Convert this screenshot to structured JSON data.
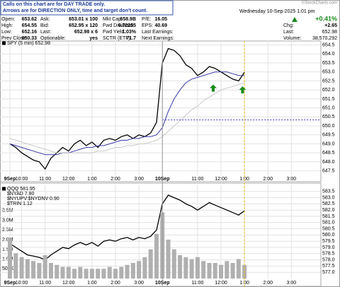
{
  "header": {
    "notice": [
      "Calls on this chart are for DAY TRADE only.",
      "Arrows are for DIRECTION ONLY, time and target don't count."
    ],
    "quote_columns": [
      [
        {
          "label": "Open:",
          "value": 653.62
        },
        {
          "label": "High:",
          "value": 654.55
        },
        {
          "label": "Low:",
          "value": 652.16
        },
        {
          "label": "Prev Close:",
          "value": 650.33
        }
      ],
      [
        {
          "label": "Ask:",
          "value": "653.01 x 100"
        },
        {
          "label": "Bid:",
          "value": "652.95 x 120"
        },
        {
          "label": "Last:",
          "value": "652.98 x 6"
        },
        {
          "label": "Optionable:",
          "value": "yes"
        }
      ],
      [
        {
          "label": "Mkt Cap:",
          "value": "658.9B"
        },
        {
          "label": "Fwd Dividend:",
          "value": 6.72255
        },
        {
          "label": "Fwd Yield:",
          "value": "1.03%"
        },
        {
          "label": "SCTR (ETF):",
          "value": 71.7
        }
      ],
      [
        {
          "label": "P/E:",
          "value": 16.05
        },
        {
          "label": "EPS:",
          "value": 40.69
        },
        {
          "label": "Last Earnings:"
        },
        {
          "label": "Next Earnings:"
        }
      ]
    ],
    "source": "©StockCharts.com",
    "date": "Wednesday 10-Sep-2025 1:01 pm",
    "change_pct": "+0.41%",
    "chg_label": "Chg:",
    "chg": "+2.65",
    "last_label": "Last:",
    "last": 652.98,
    "volume_label": "Volume:",
    "volume": "38,570,292"
  },
  "chart_data": [
    {
      "type": "line",
      "x": [
        0,
        3,
        6,
        9,
        12,
        15,
        18,
        21,
        24,
        27,
        30,
        33,
        36,
        39,
        42,
        45,
        48,
        51,
        54,
        57,
        60,
        63,
        66,
        69,
        72,
        75,
        78,
        81,
        84,
        87,
        90,
        93,
        96,
        99,
        102,
        105,
        108,
        111,
        114,
        117,
        120
      ],
      "xlim": [
        0,
        158
      ],
      "xticks": [
        {
          "value": 0,
          "label": "9Sep"
        },
        {
          "value": 6,
          "label": "10:00"
        },
        {
          "value": 18,
          "label": "11:00"
        },
        {
          "value": 30,
          "label": "12:00"
        },
        {
          "value": 42,
          "label": "1:00"
        },
        {
          "value": 54,
          "label": "2:00"
        },
        {
          "value": 66,
          "label": "3:00"
        },
        {
          "value": 78,
          "label": "10Sep"
        },
        {
          "value": 96,
          "label": "11:00"
        },
        {
          "value": 108,
          "label": "12:00"
        },
        {
          "value": 120,
          "label": "1:00"
        },
        {
          "value": 132,
          "label": "2:00"
        },
        {
          "value": 144,
          "label": "3:00"
        }
      ],
      "ylim": [
        647.25,
        654.8
      ],
      "yticks": [
        654.5,
        {
          "value": 654,
          "label": "654.0"
        },
        653.5,
        {
          "value": 653,
          "label": "653.0"
        },
        652.5,
        {
          "value": 652,
          "label": "652.0"
        },
        651.5,
        {
          "value": 651,
          "label": "651.0"
        },
        650.5,
        {
          "value": 650,
          "label": "650.0"
        },
        649.5,
        {
          "value": 649,
          "label": "649.0"
        },
        648.5,
        {
          "value": 648,
          "label": "648.0"
        },
        647.5
      ],
      "grid": true,
      "series": [
        {
          "name": "SPY (5 min) 652.98",
          "color": "#000000",
          "values": [
            649.0,
            648.8,
            648.5,
            648.3,
            648.1,
            648.0,
            647.6,
            648.2,
            648.5,
            648.8,
            648.6,
            649.0,
            649.2,
            648.9,
            649.1,
            648.8,
            649.2,
            649.3,
            649.2,
            649.4,
            649.5,
            649.3,
            649.5,
            649.4,
            649.6,
            650.2,
            653.5,
            654.3,
            654.2,
            653.9,
            653.4,
            653.2,
            652.8,
            653.0,
            653.3,
            653.2,
            653.0,
            652.8,
            652.6,
            652.5,
            652.98
          ]
        },
        {
          "color": "#3a3aa8",
          "values": [
            649.0,
            648.9,
            648.8,
            648.7,
            648.6,
            648.5,
            648.4,
            648.4,
            648.4,
            648.5,
            648.5,
            648.6,
            648.7,
            648.8,
            648.8,
            648.9,
            648.9,
            649.0,
            649.1,
            649.2,
            649.2,
            649.3,
            649.3,
            649.4,
            649.4,
            649.5,
            649.9,
            650.8,
            651.5,
            652.0,
            652.4,
            652.6,
            652.7,
            652.8,
            652.9,
            653.0,
            653.0,
            653.0,
            652.9,
            652.8,
            652.8
          ]
        },
        {
          "color": "#c8c8c8",
          "values": [
            649.3,
            649.2,
            649.1,
            649.0,
            648.9,
            648.8,
            648.7,
            648.6,
            648.5,
            648.5,
            648.5,
            648.5,
            648.5,
            648.5,
            648.5,
            648.6,
            648.6,
            648.7,
            648.8,
            648.8,
            648.9,
            648.9,
            649.0,
            649.0,
            649.1,
            649.2,
            649.4,
            649.7,
            650.0,
            650.3,
            650.6,
            650.9,
            651.1,
            651.4,
            651.6,
            651.8,
            652.0,
            652.1,
            652.2,
            652.3,
            652.4
          ]
        }
      ]
    },
    {
      "type": "line",
      "x": [
        0,
        3,
        6,
        9,
        12,
        15,
        18,
        21,
        24,
        27,
        30,
        33,
        36,
        39,
        42,
        45,
        48,
        51,
        54,
        57,
        60,
        63,
        66,
        69,
        72,
        75,
        78,
        81,
        84,
        87,
        90,
        93,
        96,
        99,
        102,
        105,
        108,
        111,
        114,
        117,
        120
      ],
      "xlim": [
        0,
        158
      ],
      "xticks": [
        {
          "value": 0,
          "label": "9Sep"
        },
        {
          "value": 6,
          "label": "10:00"
        },
        {
          "value": 18,
          "label": "11:00"
        },
        {
          "value": 30,
          "label": "12:00"
        },
        {
          "value": 42,
          "label": "1:00"
        },
        {
          "value": 54,
          "label": "2:00"
        },
        {
          "value": 66,
          "label": "3:00"
        },
        {
          "value": 78,
          "label": "10Sep"
        },
        {
          "value": 96,
          "label": "11:00"
        },
        {
          "value": 108,
          "label": "12:00"
        },
        {
          "value": 120,
          "label": "1:00"
        },
        {
          "value": 132,
          "label": "2:00"
        },
        {
          "value": 144,
          "label": "3:00"
        }
      ],
      "ylim": [
        0,
        4800000
      ],
      "yticks": [
        {
          "value": 500000,
          "label": "500K"
        },
        {
          "value": 1000000,
          "label": "1.0M"
        },
        {
          "value": 1500000,
          "label": "1.5M"
        },
        {
          "value": 2000000,
          "label": "2.0M"
        },
        {
          "value": 2500000,
          "label": "2.5M"
        },
        {
          "value": 3000000,
          "label": "3.0M"
        },
        {
          "value": 3500000,
          "label": "3.5M"
        }
      ],
      "y2lim": [
        576.5,
        584.0
      ],
      "y2ticks": [
        583.5,
        {
          "value": 583,
          "label": "583.0"
        },
        582.5,
        {
          "value": 582,
          "label": "582.0"
        },
        581.5,
        {
          "value": 581,
          "label": "581.0"
        },
        580.5,
        {
          "value": 580,
          "label": "580.0"
        },
        579.5,
        {
          "value": 579,
          "label": "579.0"
        },
        578.5,
        {
          "value": 578,
          "label": "578.0"
        },
        577.5,
        {
          "value": 577,
          "label": "577.0"
        }
      ],
      "grid": true,
      "indicator_labels": [
        "$NYAD 7.80",
        "$NYUPV:$NYDNV 0.90",
        "$TRIN 1.12"
      ],
      "series": [
        {
          "name": "QQQ 581.95",
          "color": "#000000",
          "axis": "y2",
          "values": [
            579.3,
            579.0,
            578.7,
            578.4,
            578.3,
            578.2,
            578.0,
            578.4,
            578.7,
            579.0,
            578.9,
            579.2,
            579.4,
            579.2,
            579.4,
            579.1,
            579.5,
            579.6,
            579.5,
            579.7,
            579.8,
            579.6,
            579.8,
            579.7,
            579.9,
            580.4,
            582.5,
            583.2,
            583.0,
            582.8,
            582.5,
            582.3,
            582.0,
            582.3,
            582.6,
            582.4,
            582.2,
            582.0,
            581.8,
            581.6,
            581.95
          ]
        },
        {
          "type": "bar",
          "color": "#b0b0b0",
          "values": [
            2100000,
            1300000,
            1100000,
            1000000,
            900000,
            800000,
            1200000,
            800000,
            700000,
            600000,
            600000,
            500000,
            600000,
            500000,
            500000,
            500000,
            500000,
            600000,
            500000,
            600000,
            700000,
            800000,
            900000,
            1100000,
            1500000,
            2300000,
            3400000,
            2000000,
            1500000,
            1200000,
            1100000,
            1000000,
            1100000,
            900000,
            800000,
            800000,
            700000,
            900000,
            800000,
            1000000,
            700000
          ]
        }
      ]
    }
  ]
}
